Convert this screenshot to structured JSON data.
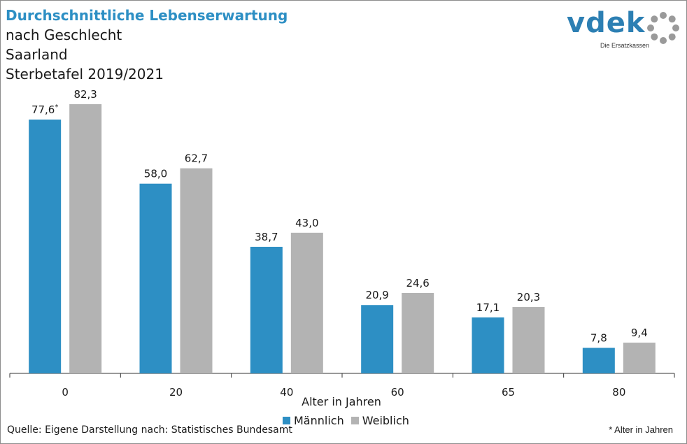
{
  "title": {
    "line1": "Durchschnittliche Lebenserwartung",
    "line2": "nach Geschlecht",
    "line3": "Saarland",
    "line4": "Sterbetafel 2019/2021"
  },
  "logo": {
    "name": "vdek",
    "tagline": "Die Ersatzkassen"
  },
  "colors": {
    "male": "#2d8fc4",
    "female": "#b3b3b3",
    "title": "#2d8fc4"
  },
  "chart_data": {
    "type": "bar",
    "categories": [
      "0",
      "20",
      "40",
      "60",
      "65",
      "80"
    ],
    "series": [
      {
        "name": "Männlich",
        "values": [
          77.6,
          58.0,
          38.7,
          20.9,
          17.1,
          7.8
        ]
      },
      {
        "name": "Weiblich",
        "values": [
          82.3,
          62.7,
          43.0,
          24.6,
          20.3,
          9.4
        ]
      }
    ],
    "value_labels": {
      "male": [
        "77,6",
        "58,0",
        "38,7",
        "20,9",
        "17,1",
        "7,8"
      ],
      "female": [
        "82,3",
        "62,7",
        "43,0",
        "24,6",
        "20,3",
        "9,4"
      ]
    },
    "first_label_marker": "*",
    "xlabel": "Alter in Jahren",
    "ylabel": "",
    "ylim": [
      0,
      90
    ],
    "grid": false,
    "legend_position": "bottom"
  },
  "footer": {
    "source": "Quelle: Eigene Darstellung nach: Statistisches Bundesamt",
    "note": "* Alter in Jahren"
  }
}
